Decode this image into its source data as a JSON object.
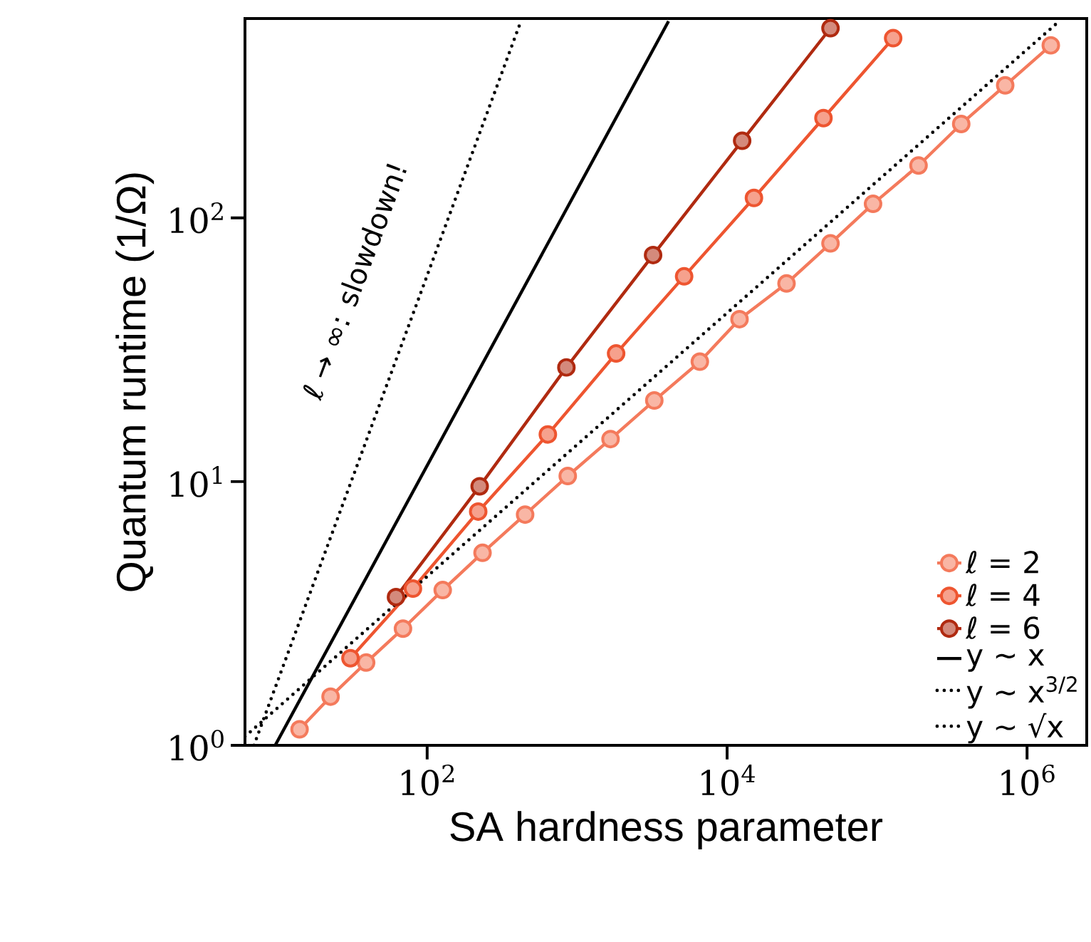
{
  "chart_data": {
    "type": "line",
    "xlabel": "SA hardness parameter",
    "ylabel": "Quantum runtime (1/Ω)",
    "log": "xy",
    "grid": false,
    "legend": "bottom right",
    "xlim": [
      6.1,
      2500000
    ],
    "ylim": [
      1,
      570
    ],
    "xticks": [
      {
        "value": 100,
        "label": "10$^{2}$"
      },
      {
        "value": 10000,
        "label": "10$^{4}$"
      },
      {
        "value": 1000000,
        "label": "10$^{6}$"
      }
    ],
    "yticks": [
      {
        "value": 1,
        "label": "10$^{0}$"
      },
      {
        "value": 10,
        "label": "10$^{1}$"
      },
      {
        "value": 100,
        "label": "10$^{2}$"
      }
    ],
    "annotations": [
      "ℓ → ∞: slowdown!"
    ],
    "series": [
      {
        "name": "ℓ = 2",
        "color": "#f47a5c",
        "marker": "circle",
        "line_style": "solid",
        "x": [
          14.1,
          22.7,
          39.2,
          69,
          127,
          234,
          450,
          866,
          1670,
          3270,
          6580,
          12100,
          24900,
          48900,
          94000,
          189000,
          364000,
          715000,
          1440000
        ],
        "values": [
          1.15,
          1.53,
          2.06,
          2.77,
          3.88,
          5.37,
          7.5,
          10.5,
          14.5,
          20.3,
          28.5,
          41.3,
          56.4,
          80,
          113,
          158,
          227,
          318,
          451
        ]
      },
      {
        "name": "ℓ = 4",
        "color": "#ee5530",
        "marker": "circle",
        "line_style": "solid",
        "x": [
          30.8,
          80.4,
          219,
          638,
          1820,
          5170,
          15100,
          43900,
          128000
        ],
        "values": [
          2.14,
          3.93,
          7.7,
          15.1,
          30.6,
          60,
          119,
          239,
          480
        ]
      },
      {
        "name": "ℓ = 6",
        "color": "#b02a10",
        "marker": "circle",
        "line_style": "solid",
        "x": [
          62,
          224,
          848,
          3210,
          12600,
          48900
        ],
        "values": [
          3.65,
          9.6,
          27.1,
          72.3,
          196,
          524
        ]
      },
      {
        "name": "y ∼ x",
        "color": "#000000",
        "marker": "none",
        "line_style": "solid",
        "x": [
          9.7,
          4070
        ],
        "values": [
          1,
          557
        ]
      },
      {
        "name": "y ∼ x$^{3/2}$",
        "color": "#000000",
        "marker": "none",
        "line_style": "dotted",
        "x": [
          7.0,
          422
        ],
        "values": [
          1,
          557
        ]
      },
      {
        "name": "y ∼ √x",
        "color": "#000000",
        "marker": "none",
        "line_style": "dotted",
        "x": [
          6.1,
          1640000
        ],
        "values": [
          1.08,
          557
        ]
      }
    ]
  }
}
